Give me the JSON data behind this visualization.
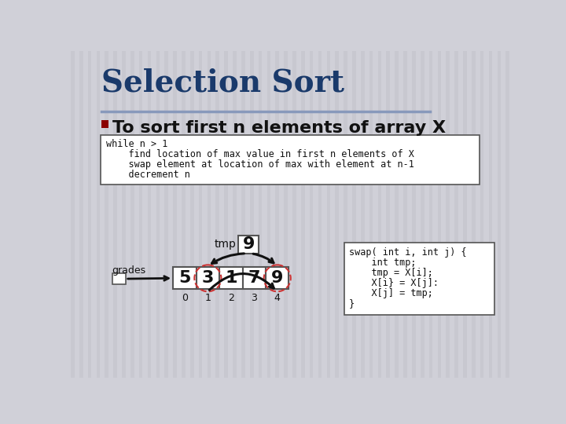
{
  "title": "Selection Sort",
  "title_color": "#1a3a6b",
  "bg_color": "#d0d0d8",
  "stripe_color": "#c4c4cc",
  "separator_color": "#8899bb",
  "bullet_color": "#8b0000",
  "bullet_text": "To sort first n elements of array X",
  "code_block_lines": [
    "while n > 1",
    "    find location of max value in first n elements of X",
    "    swap element at location of max with element at n-1",
    "    decrement n"
  ],
  "array_values": [
    "5",
    "3",
    "1",
    "7",
    "9"
  ],
  "array_indices": [
    "0",
    "1",
    "2",
    "3",
    "4"
  ],
  "tmp_value": "9",
  "tmp_label": "tmp",
  "grades_label": "grades",
  "swap_code_lines": [
    "swap( int i, int j) {",
    "    int tmp;",
    "    tmp = X[i];",
    "    X[i} = X[j]:",
    "    X[j] = tmp;",
    "}"
  ],
  "circled_indices": [
    1,
    4
  ],
  "box_fill": "#ffffff",
  "box_edge": "#555555",
  "circle_color": "#cc3333",
  "arrow_color": "#111111",
  "text_color": "#111111",
  "title_fontsize": 28,
  "bullet_fontsize": 16,
  "code_fontsize": 8.5,
  "array_fontsize": 16,
  "index_fontsize": 9,
  "swap_fontsize": 8.5,
  "tmp_fontsize": 10,
  "grades_fontsize": 9
}
